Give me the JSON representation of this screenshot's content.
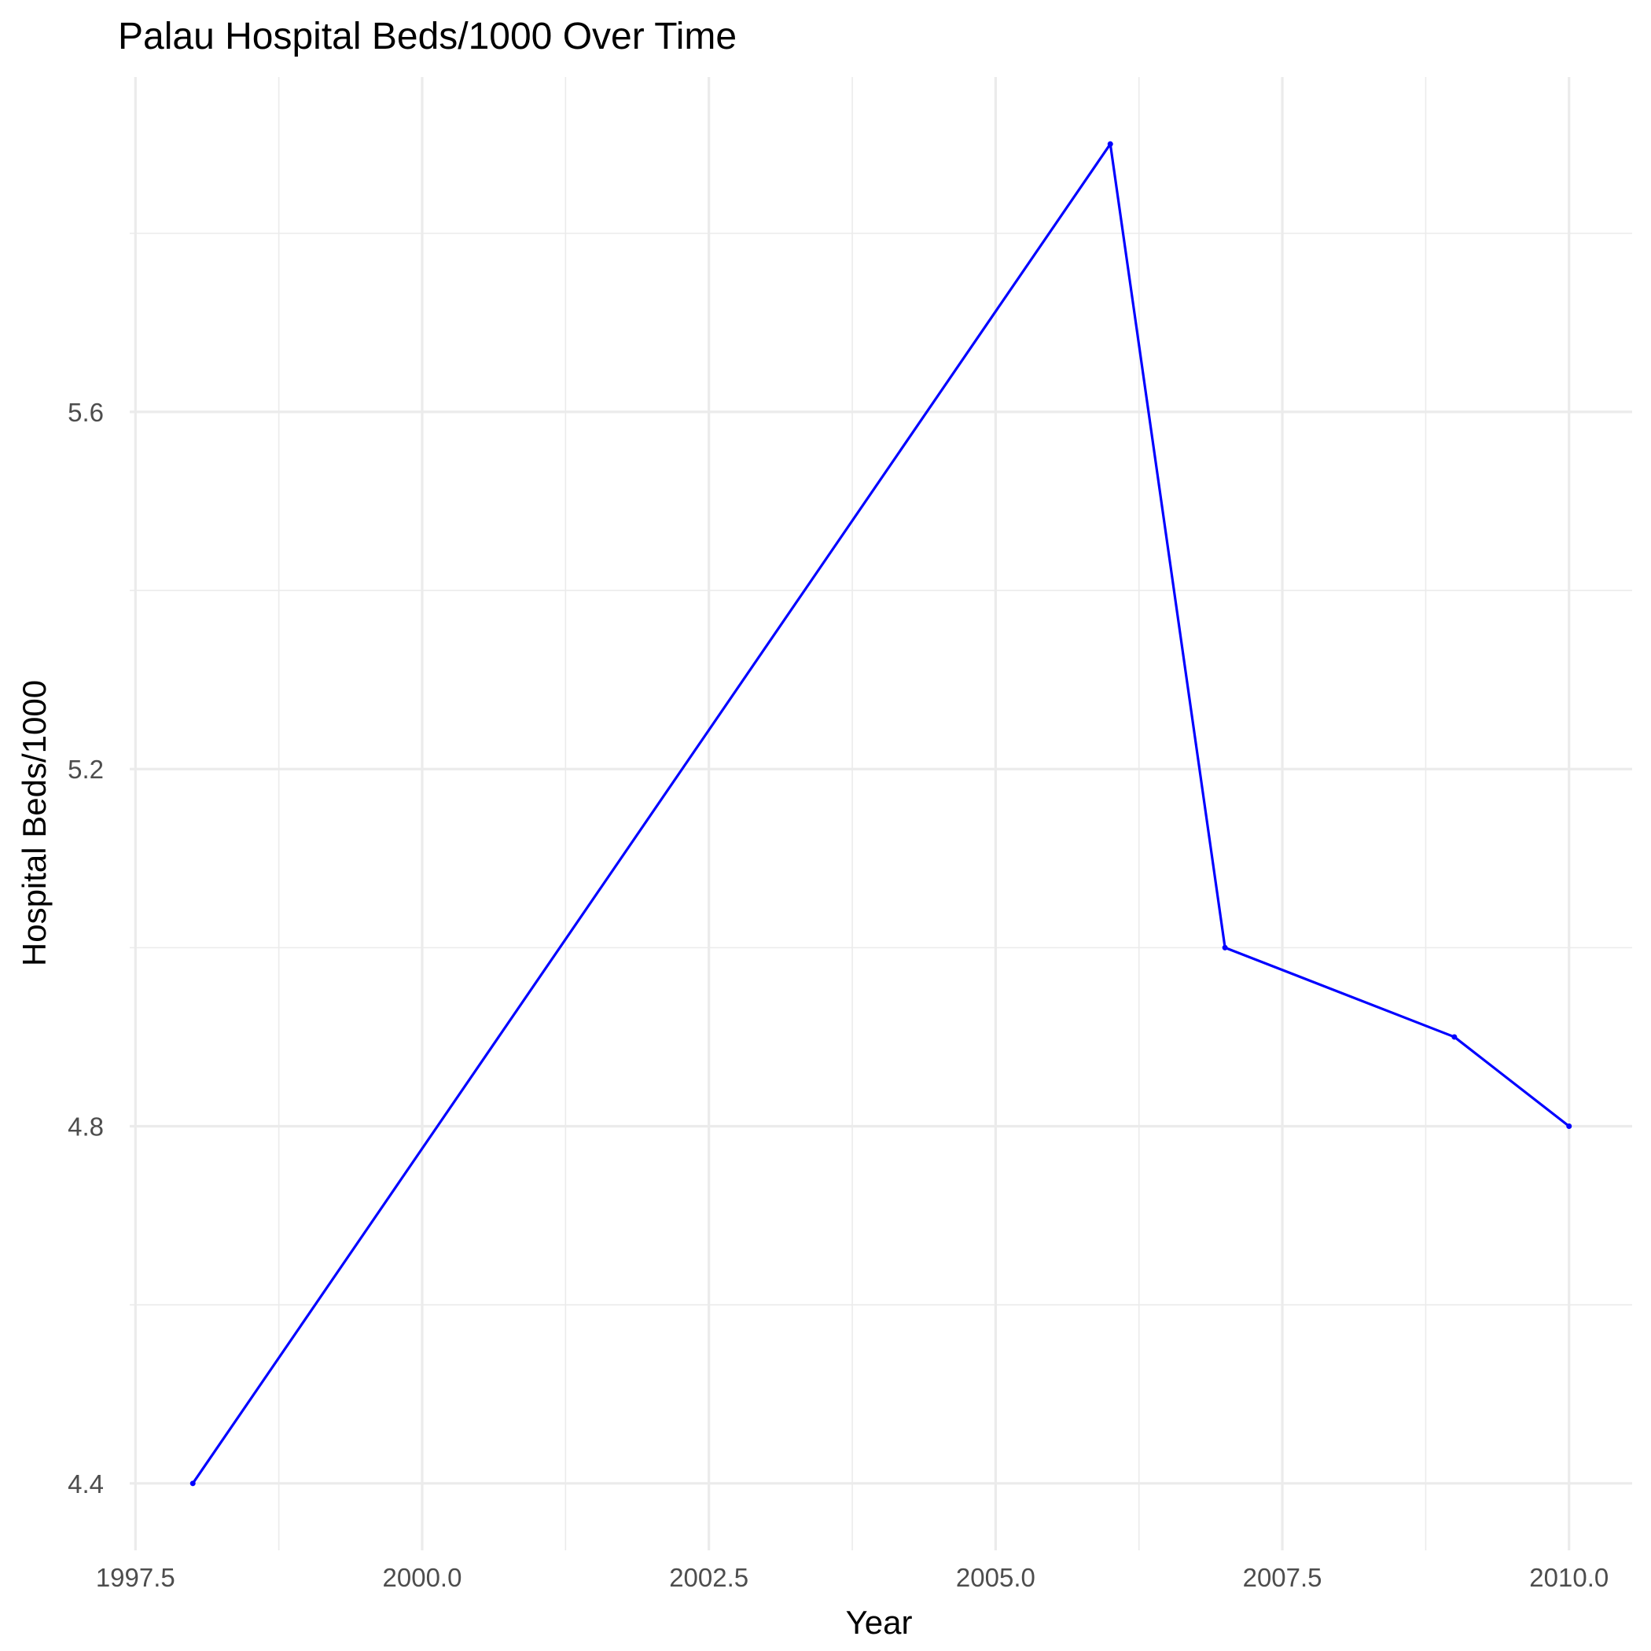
{
  "chart_data": {
    "type": "line",
    "title": "Palau Hospital Beds/1000 Over Time",
    "xlabel": "Year",
    "ylabel": "Hospital Beds/1000",
    "x": [
      1998,
      2006,
      2007,
      2009,
      2010
    ],
    "series": [
      {
        "values": [
          4.4,
          5.9,
          5.0,
          4.9,
          4.8
        ],
        "color": "#0000ff"
      }
    ],
    "xlim": [
      1997.45,
      2010.55
    ],
    "ylim": [
      4.325,
      5.975
    ],
    "x_ticks": [
      1997.5,
      2000.0,
      2002.5,
      2005.0,
      2007.5,
      2010.0
    ],
    "x_tick_labels": [
      "1997.5",
      "2000.0",
      "2002.5",
      "2005.0",
      "2007.5",
      "2010.0"
    ],
    "y_ticks": [
      4.4,
      4.8,
      5.2,
      5.6
    ],
    "y_tick_labels": [
      "4.4",
      "4.8",
      "5.2",
      "5.6"
    ],
    "x_minor_ticks": [
      1998.75,
      2001.25,
      2003.75,
      2006.25,
      2008.75
    ],
    "y_minor_ticks": [
      4.6,
      5.0,
      5.4,
      5.8
    ],
    "grid": true,
    "legend": "none",
    "colors": {
      "background": "#ffffff",
      "grid": "#ebebeb",
      "line": "#0000ff",
      "tick_text": "#4d4d4d",
      "text": "#000000"
    }
  }
}
